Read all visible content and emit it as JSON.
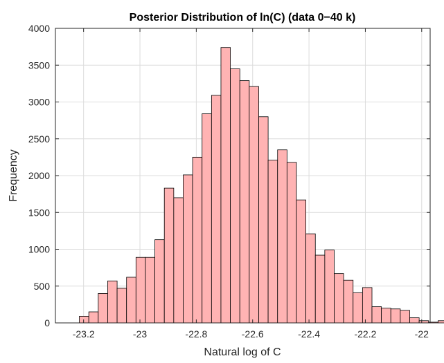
{
  "chart_data": {
    "type": "bar",
    "title": "Posterior Distribution of ln(C)  (data 0−40 k)",
    "xlabel": "Natural log of C",
    "ylabel": "Frequency",
    "xlim": [
      -23.3,
      -21.97
    ],
    "ylim": [
      0,
      4000
    ],
    "xticks": [
      -23.2,
      -23.0,
      -22.8,
      -22.6,
      -22.4,
      -22.2,
      -22.0
    ],
    "xtick_labels": [
      "-23.2",
      "-23",
      "-22.8",
      "-22.6",
      "-22.4",
      "-22.2",
      "-22"
    ],
    "yticks": [
      0,
      500,
      1000,
      1500,
      2000,
      2500,
      3000,
      3500,
      4000
    ],
    "ytick_labels": [
      "0",
      "500",
      "1000",
      "1500",
      "2000",
      "2500",
      "3000",
      "3500",
      "4000"
    ],
    "grid": true,
    "colors": {
      "bar_fill": "#ffb3b3",
      "bar_edge": "#000000",
      "grid": "#dcdcdc",
      "axis": "#262626"
    },
    "bin_width": 0.0335,
    "bin_start": -23.215,
    "values": [
      90,
      150,
      400,
      570,
      470,
      620,
      890,
      890,
      1130,
      1830,
      1700,
      2010,
      2250,
      2840,
      3090,
      3740,
      3450,
      3290,
      3210,
      2800,
      2210,
      2350,
      2180,
      1670,
      1210,
      920,
      990,
      670,
      580,
      410,
      480,
      220,
      200,
      190,
      170,
      70,
      30,
      10,
      30
    ]
  }
}
